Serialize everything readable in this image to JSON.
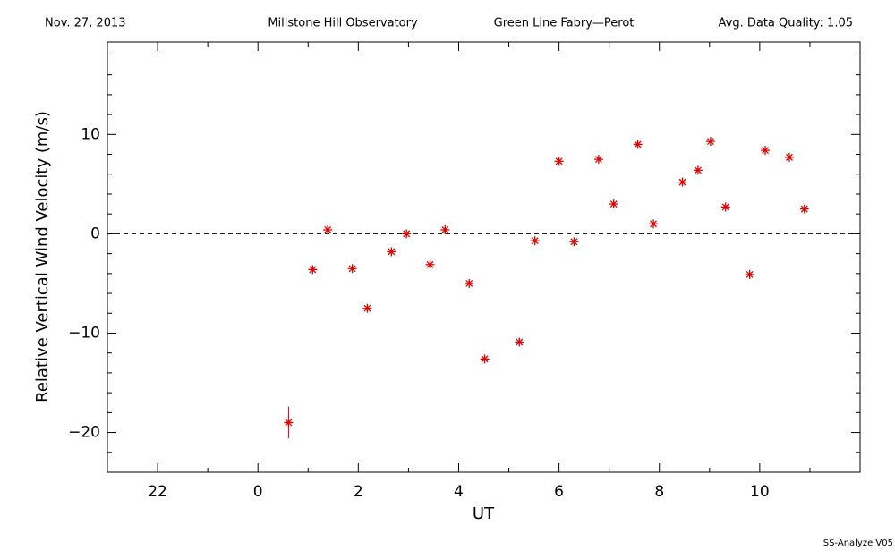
{
  "chart_data": {
    "type": "scatter",
    "header": {
      "date": "Nov. 27, 2013",
      "observatory": "Millstone Hill Observatory",
      "instrument": "Green Line Fabry—Perot",
      "quality": "Avg. Data Quality: 1.05"
    },
    "footer": "SS-Analyze V05",
    "xlabel": "UT",
    "ylabel": "Relative Vertical Wind Velocity (m/s)",
    "xlim": [
      -3,
      12
    ],
    "ylim": [
      -24,
      19.3
    ],
    "xticks": [
      {
        "value": -2,
        "label": "22"
      },
      0,
      2,
      4,
      6,
      8,
      10
    ],
    "xminorticks": [
      -1,
      1,
      3,
      5,
      7,
      9,
      11
    ],
    "yticks": [
      {
        "value": -20,
        "label": "−20"
      },
      {
        "value": -10,
        "label": "−10"
      },
      0,
      10
    ],
    "yminorticks": [
      -22,
      -18,
      -16,
      -14,
      -12,
      -8,
      -6,
      -4,
      -2,
      2,
      4,
      6,
      8,
      12,
      14,
      16,
      18
    ],
    "hline": 0,
    "color": "#e00000",
    "x": [
      0.61,
      1.09,
      1.39,
      1.88,
      2.18,
      2.66,
      2.96,
      3.43,
      3.73,
      4.21,
      4.52,
      5.21,
      5.52,
      6.0,
      6.3,
      6.79,
      7.09,
      7.57,
      7.88,
      8.46,
      8.77,
      9.02,
      9.32,
      9.8,
      10.11,
      10.59,
      10.89
    ],
    "values": [
      -19.0,
      -3.6,
      0.4,
      -3.5,
      -7.5,
      -1.8,
      0.0,
      -3.1,
      0.4,
      -5.0,
      -12.6,
      -10.9,
      -0.7,
      7.3,
      -0.8,
      7.5,
      3.0,
      9.0,
      1.0,
      5.2,
      6.4,
      9.3,
      2.7,
      -4.1,
      8.4,
      7.7,
      2.5
    ],
    "errors": [
      1.6,
      0.3,
      0.3,
      0.3,
      0.3,
      0.3,
      0.3,
      0.3,
      0.3,
      0.3,
      0.3,
      0.3,
      0.3,
      0.3,
      0.3,
      0.3,
      0.3,
      0.3,
      0.3,
      0.3,
      0.3,
      0.3,
      0.3,
      0.3,
      0.3,
      0.3,
      0.3
    ]
  }
}
